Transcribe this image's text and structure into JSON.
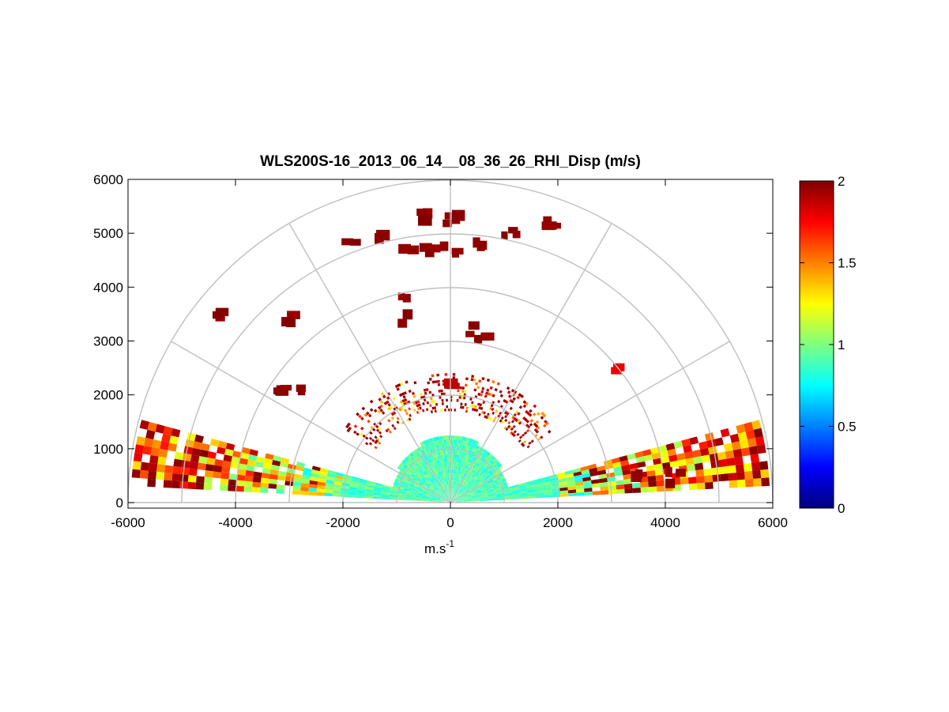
{
  "chart_data": {
    "type": "heatmap",
    "subtype": "polar-rhi-scan",
    "title": "WLS200S-16_2013_06_14__08_36_26_RHI_Disp (m/s)",
    "xlabel_base": "m.s",
    "xlabel_sup": "-1",
    "xlim": [
      -6000,
      6000
    ],
    "ylim": [
      0,
      6000
    ],
    "xticks": [
      -6000,
      -4000,
      -2000,
      0,
      2000,
      4000,
      6000
    ],
    "yticks": [
      0,
      1000,
      2000,
      3000,
      4000,
      5000,
      6000
    ],
    "polar_grid": {
      "ring_radii": [
        1000,
        2000,
        3000,
        4000,
        5000,
        6000
      ],
      "spoke_angles_deg": [
        0,
        30,
        60,
        90,
        120,
        150,
        180
      ]
    },
    "colorbar": {
      "colormap": "jet",
      "range": [
        0,
        2
      ],
      "ticks": [
        0,
        0.5,
        1,
        1.5,
        2
      ]
    },
    "scan": {
      "elevation_deg_range": [
        3,
        15
      ],
      "max_range_m": 5900,
      "dense_core_range_m": 2000,
      "typical_value": 0.9,
      "far_range_value_increasing": true
    },
    "clusters": [
      {
        "x": -4200,
        "y": 3500,
        "value": 2
      },
      {
        "x": -2920,
        "y": 3450,
        "value": 2
      },
      {
        "x": -3160,
        "y": 2020,
        "value": 2
      },
      {
        "x": -2920,
        "y": 2130,
        "value": 2
      },
      {
        "x": -1800,
        "y": 4850,
        "value": 2
      },
      {
        "x": -1400,
        "y": 4900,
        "value": 2
      },
      {
        "x": -820,
        "y": 4760,
        "value": 2
      },
      {
        "x": -420,
        "y": 4620,
        "value": 2
      },
      {
        "x": -420,
        "y": 5320,
        "value": 2
      },
      {
        "x": 0,
        "y": 5300,
        "value": 2
      },
      {
        "x": 0,
        "y": 4650,
        "value": 2
      },
      {
        "x": 450,
        "y": 4750,
        "value": 2
      },
      {
        "x": 1080,
        "y": 5050,
        "value": 2
      },
      {
        "x": 1950,
        "y": 5250,
        "value": 2
      },
      {
        "x": -800,
        "y": 3760,
        "value": 2
      },
      {
        "x": -870,
        "y": 3440,
        "value": 2
      },
      {
        "x": 360,
        "y": 3230,
        "value": 2
      },
      {
        "x": 630,
        "y": 3000,
        "value": 2
      },
      {
        "x": 3120,
        "y": 2440,
        "value": 1.8
      },
      {
        "x": 0,
        "y": 2280,
        "value": 1.9
      },
      {
        "x": 3500,
        "y": 470,
        "value": 2
      },
      {
        "x": 4200,
        "y": 460,
        "value": 2
      }
    ]
  }
}
